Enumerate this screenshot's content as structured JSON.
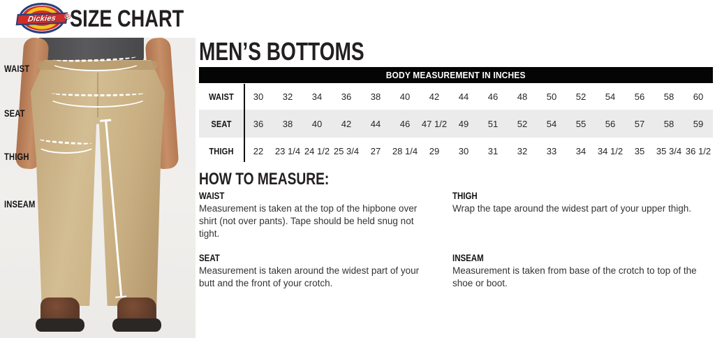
{
  "header": {
    "logo_text": "Dickies",
    "logo_reg": "®",
    "title": "SIZE CHART"
  },
  "figure": {
    "labels": {
      "waist": "WAIST",
      "seat": "SEAT",
      "thigh": "THIGH",
      "inseam": "INSEAM"
    }
  },
  "main": {
    "title": "MEN’S BOTTOMS",
    "table": {
      "header": "BODY MEASUREMENT IN INCHES",
      "rows": [
        {
          "label": "WAIST",
          "values": [
            "30",
            "32",
            "34",
            "36",
            "38",
            "40",
            "42",
            "44",
            "46",
            "48",
            "50",
            "52",
            "54",
            "56",
            "58",
            "60"
          ]
        },
        {
          "label": "SEAT",
          "values": [
            "36",
            "38",
            "40",
            "42",
            "44",
            "46",
            "47 1/2",
            "49",
            "51",
            "52",
            "54",
            "55",
            "56",
            "57",
            "58",
            "59"
          ]
        },
        {
          "label": "THIGH",
          "values": [
            "22",
            "23 1/4",
            "24 1/2",
            "25 3/4",
            "27",
            "28 1/4",
            "29",
            "30",
            "31",
            "32",
            "33",
            "34",
            "34 1/2",
            "35",
            "35 3/4",
            "36 1/2"
          ]
        }
      ]
    },
    "how_to": {
      "title": "HOW TO MEASURE:",
      "items": [
        {
          "label": "WAIST",
          "text": "Measurement is taken at the top of the hipbone over shirt (not over pants). Tape should be held snug not tight."
        },
        {
          "label": "THIGH",
          "text": "Wrap the tape around the widest part of your upper thigh."
        },
        {
          "label": "SEAT",
          "text": "Measurement is taken around the widest part of your butt and the front of your crotch."
        },
        {
          "label": "INSEAM",
          "text": "Measurement is taken from base of the crotch to top of the shoe or boot."
        }
      ]
    }
  },
  "colors": {
    "brand_red": "#cf2e2b",
    "brand_yellow": "#f2c01e",
    "brand_navy": "#27417c",
    "bar_bg": "#050505",
    "row_alt_bg": "#ebebeb",
    "khaki": "#c9ae81"
  }
}
